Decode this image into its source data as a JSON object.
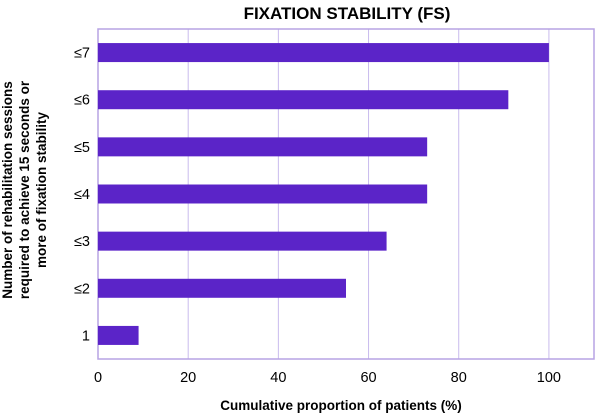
{
  "chart_data": {
    "type": "bar",
    "orientation": "horizontal",
    "title": "FIXATION STABILITY (FS)",
    "xlabel": "Cumulative proportion of patients (%)",
    "ylabel_lines": [
      "Number of rehabilitation sessions",
      "required to achieve 15 seconds or",
      "more of fixation stability"
    ],
    "categories": [
      "≤7",
      "≤6",
      "≤5",
      "≤4",
      "≤3",
      "≤2",
      "1"
    ],
    "values": [
      100,
      91,
      73,
      73,
      64,
      55,
      9
    ],
    "xlim": [
      0,
      110
    ],
    "xticks": [
      0,
      20,
      40,
      60,
      80,
      100
    ],
    "grid": true,
    "legend": "none",
    "bar_color": "#5b24c8",
    "frame_color": "#b7a3e4",
    "grid_color": "#c9bbed"
  }
}
